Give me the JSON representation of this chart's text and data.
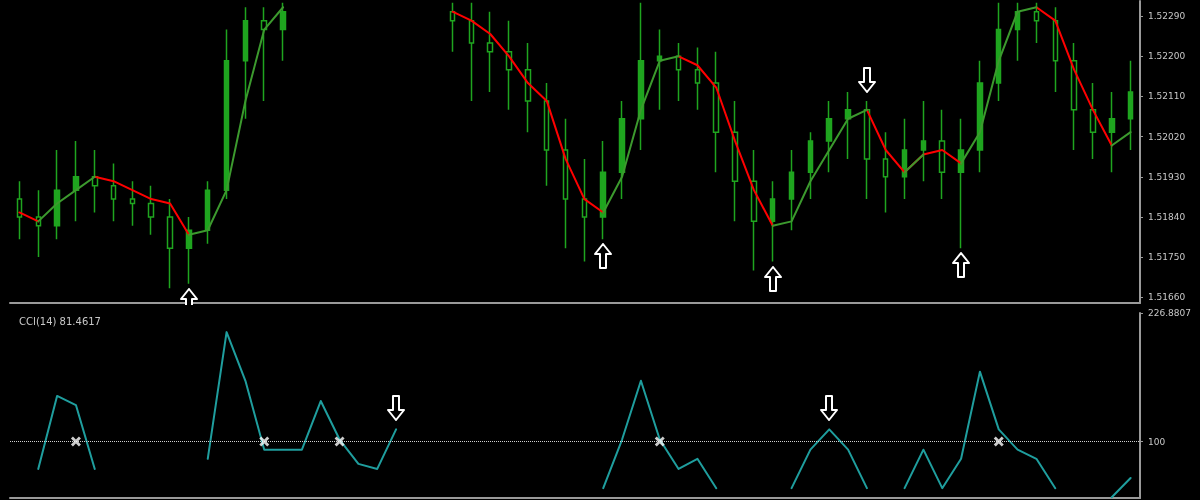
{
  "chart_data": [
    {
      "type": "candlestick",
      "color": "#1fa51f",
      "tick_labels": "y",
      "categories": [
        null,
        null,
        null,
        null,
        null,
        null,
        null,
        null,
        null,
        null,
        null,
        null,
        null,
        null,
        null,
        null,
        null,
        null,
        null,
        null,
        null,
        null,
        null,
        null,
        null,
        null,
        null,
        null,
        null,
        null,
        null,
        null,
        null,
        null,
        null,
        null,
        null,
        null,
        null,
        null,
        null,
        null,
        null,
        null,
        null,
        null,
        null,
        null,
        null,
        null,
        null,
        null,
        null,
        null,
        null,
        null,
        null,
        null,
        null,
        null
      ],
      "ohlc": [
        [
          1.5188,
          1.5192,
          1.5179,
          1.5184
        ],
        [
          1.5184,
          1.519,
          1.5175,
          1.5182
        ],
        [
          1.5182,
          1.5199,
          1.5179,
          1.519
        ],
        [
          1.519,
          1.5201,
          1.5183,
          1.5193
        ],
        [
          1.5193,
          1.5199,
          1.5185,
          1.5191
        ],
        [
          1.5191,
          1.5196,
          1.5183,
          1.5188
        ],
        [
          1.5188,
          1.5192,
          1.5182,
          1.5187
        ],
        [
          1.5187,
          1.5191,
          1.518,
          1.5184
        ],
        [
          1.5184,
          1.5188,
          1.5168,
          1.5177
        ],
        [
          1.5177,
          1.5184,
          1.5169,
          1.5181
        ],
        [
          1.5181,
          1.5192,
          1.5178,
          1.519
        ],
        [
          1.519,
          1.5226,
          1.5188,
          1.5219
        ],
        [
          1.5219,
          1.5231,
          1.5206,
          1.5228
        ],
        [
          1.5228,
          1.5231,
          1.521,
          1.5226
        ],
        [
          1.5226,
          1.5232,
          1.5219,
          1.523
        ],
        null,
        null,
        null,
        null,
        null,
        null,
        null,
        null,
        [
          1.523,
          1.5232,
          1.5221,
          1.5228
        ],
        [
          1.5228,
          1.5232,
          1.521,
          1.5223
        ],
        [
          1.5223,
          1.523,
          1.5212,
          1.5221
        ],
        [
          1.5221,
          1.5228,
          1.5208,
          1.5217
        ],
        [
          1.5217,
          1.5223,
          1.5203,
          1.521
        ],
        [
          1.521,
          1.5214,
          1.5191,
          1.5199
        ],
        [
          1.5199,
          1.5206,
          1.5177,
          1.5188
        ],
        [
          1.5188,
          1.5197,
          1.5174,
          1.5184
        ],
        [
          1.5184,
          1.5201,
          1.5179,
          1.5194
        ],
        [
          1.5194,
          1.521,
          1.5188,
          1.5206
        ],
        [
          1.5206,
          1.5232,
          1.5199,
          1.5219
        ],
        [
          1.5219,
          1.5226,
          1.5208,
          1.522
        ],
        [
          1.522,
          1.5223,
          1.521,
          1.5217
        ],
        [
          1.5217,
          1.5222,
          1.5208,
          1.5214
        ],
        [
          1.5214,
          1.5221,
          1.5194,
          1.5203
        ],
        [
          1.5203,
          1.521,
          1.5183,
          1.5192
        ],
        [
          1.5192,
          1.5199,
          1.5172,
          1.5183
        ],
        [
          1.5183,
          1.5192,
          1.5174,
          1.5188
        ],
        [
          1.5188,
          1.5199,
          1.5181,
          1.5194
        ],
        [
          1.5194,
          1.5203,
          1.5188,
          1.5201
        ],
        [
          1.5201,
          1.521,
          1.5194,
          1.5206
        ],
        [
          1.5206,
          1.5212,
          1.5197,
          1.5208
        ],
        [
          1.5208,
          1.521,
          1.5188,
          1.5197
        ],
        [
          1.5197,
          1.5203,
          1.5185,
          1.5193
        ],
        [
          1.5193,
          1.5206,
          1.5188,
          1.5199
        ],
        [
          1.5199,
          1.521,
          1.5192,
          1.5201
        ],
        [
          1.5201,
          1.5208,
          1.5188,
          1.5194
        ],
        [
          1.5194,
          1.5206,
          1.5177,
          1.5199
        ],
        [
          1.5199,
          1.5219,
          1.5194,
          1.5214
        ],
        [
          1.5214,
          1.5232,
          1.521,
          1.5226
        ],
        [
          1.5226,
          1.5232,
          1.5219,
          1.523
        ],
        [
          1.523,
          1.5232,
          1.5223,
          1.5228
        ],
        [
          1.5228,
          1.5231,
          1.5212,
          1.5219
        ],
        [
          1.5219,
          1.5223,
          1.5199,
          1.5208
        ],
        [
          1.5208,
          1.5214,
          1.5197,
          1.5203
        ],
        [
          1.5203,
          1.5212,
          1.5194,
          1.5206
        ],
        [
          1.5206,
          1.5219,
          1.5199,
          1.5212
        ]
      ],
      "series": [
        {
          "type": "line",
          "color": "#ff0000",
          "values": [
            1.5185,
            1.5183,
            null,
            null,
            1.5193,
            1.5192,
            1.519,
            1.5188,
            1.5187,
            1.518,
            null,
            null,
            null,
            null,
            null,
            null,
            null,
            null,
            null,
            null,
            null,
            null,
            null,
            1.523,
            1.5228,
            1.5225,
            1.522,
            1.5214,
            1.521,
            1.5197,
            1.5188,
            1.5185,
            null,
            null,
            null,
            1.522,
            1.5218,
            1.5213,
            1.5201,
            1.519,
            1.5182,
            null,
            null,
            null,
            null,
            1.5208,
            1.5199,
            1.5194,
            1.5198,
            1.5199,
            1.5196,
            null,
            null,
            null,
            1.5231,
            1.5228,
            1.5217,
            1.5208,
            1.52,
            null
          ]
        },
        {
          "type": "line",
          "color": "#3c9a2e",
          "values": [
            null,
            1.5183,
            1.5187,
            1.519,
            1.5193,
            null,
            null,
            null,
            null,
            1.518,
            1.5181,
            1.519,
            1.521,
            1.5226,
            1.5231,
            null,
            null,
            null,
            null,
            null,
            null,
            null,
            null,
            null,
            null,
            null,
            null,
            null,
            null,
            null,
            null,
            1.5185,
            1.5193,
            1.5208,
            1.5219,
            1.522,
            null,
            null,
            null,
            null,
            1.5182,
            1.5183,
            1.5192,
            1.5199,
            1.5206,
            1.5208,
            null,
            1.5194,
            1.5198,
            null,
            1.5196,
            1.5203,
            1.5219,
            1.523,
            1.5231,
            null,
            null,
            null,
            1.52,
            1.5203
          ]
        }
      ],
      "ylim": [
        1.51647,
        1.52324
      ],
      "yticks": [
        {
          "value": 1.5166,
          "label": "1.51660"
        },
        {
          "value": 1.5175,
          "label": "1.51750"
        },
        {
          "value": 1.5184,
          "label": "1.51840"
        },
        {
          "value": 1.5193,
          "label": "1.51930"
        },
        {
          "value": 1.5202,
          "label": "1.52020"
        },
        {
          "value": 1.5211,
          "label": "1.52110"
        },
        {
          "value": 1.522,
          "label": "1.52200"
        },
        {
          "value": 1.5229,
          "label": "1.52290"
        }
      ]
    },
    {
      "type": "line",
      "title": "CCI(14) 81.4617",
      "tick_labels": "y",
      "categories": [
        null,
        null,
        null,
        null,
        null,
        null,
        null,
        null,
        null,
        null,
        null,
        null,
        null,
        null,
        null,
        null,
        null,
        null,
        null,
        null,
        null,
        null,
        null,
        null,
        null,
        null,
        null,
        null,
        null,
        null,
        null,
        null,
        null,
        null,
        null,
        null,
        null,
        null,
        null,
        null,
        null,
        null,
        null,
        null,
        null,
        null,
        null,
        null,
        null,
        null,
        null,
        null,
        null,
        null,
        null,
        null,
        null,
        null,
        null,
        null
      ],
      "series": [
        {
          "color": "#1f9e9e",
          "values": [
            null,
            73,
            145,
            136,
            73,
            null,
            null,
            null,
            null,
            null,
            83,
            208,
            160,
            92,
            92,
            92,
            140,
            102,
            78,
            73,
            112,
            null,
            null,
            null,
            null,
            null,
            null,
            null,
            null,
            null,
            null,
            54,
            102,
            160,
            102,
            73,
            83,
            54,
            null,
            null,
            null,
            54,
            92,
            112,
            92,
            54,
            null,
            54,
            92,
            54,
            83,
            169,
            112,
            92,
            83,
            54,
            null,
            null,
            45,
            64
          ]
        },
        {
          "type": "scatter",
          "color": "#ffffff",
          "marker": "cross",
          "values": [
            null,
            null,
            null,
            100,
            null,
            null,
            null,
            null,
            null,
            null,
            null,
            null,
            null,
            100,
            null,
            null,
            null,
            100,
            null,
            null,
            null,
            null,
            null,
            null,
            null,
            null,
            null,
            null,
            null,
            null,
            null,
            null,
            null,
            null,
            100,
            null,
            null,
            null,
            null,
            null,
            null,
            null,
            null,
            null,
            null,
            null,
            null,
            null,
            null,
            null,
            null,
            null,
            100,
            null,
            null,
            null,
            null,
            null,
            null,
            null
          ]
        }
      ],
      "ylim": [
        44.3,
        226.8807
      ],
      "yticks": [
        100,
        226.8807
      ],
      "ref_lines": [
        {
          "axis": "y",
          "value": 100,
          "color": "#d0d0d0",
          "line_style": "dotted"
        }
      ]
    }
  ]
}
